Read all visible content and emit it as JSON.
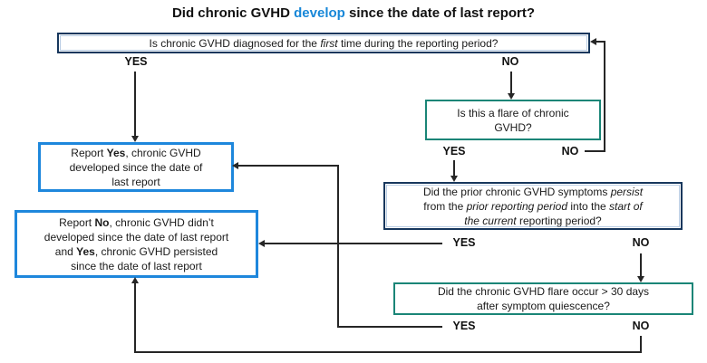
{
  "colors": {
    "navy": "#17375d",
    "teal": "#1a8577",
    "blue": "#1e87dc",
    "accent": "#1787d8",
    "line": "#262626"
  },
  "title": {
    "segments": [
      {
        "t": "Did chronic GVHD "
      },
      {
        "t": "develop",
        "s": "accent"
      },
      {
        "t": " since the date of last report?"
      }
    ]
  },
  "nodes": {
    "first_diagnosis": {
      "segments": [
        {
          "t": "Is chronic GVHD diagnosed for the "
        },
        {
          "t": "first",
          "s": "i"
        },
        {
          "t": " time during the reporting period?"
        }
      ]
    },
    "flare_question": {
      "segments": [
        {
          "t": "Is this a flare of chronic\nGVHD?"
        }
      ]
    },
    "persist_question": {
      "segments": [
        {
          "t": "Did the prior chronic GVHD symptoms "
        },
        {
          "t": "persist",
          "s": "i"
        },
        {
          "t": "\nfrom the "
        },
        {
          "t": "prior reporting period",
          "s": "i"
        },
        {
          "t": " into the "
        },
        {
          "t": "start of\nthe current",
          "s": "i"
        },
        {
          "t": " reporting period?"
        }
      ]
    },
    "flare_timing_question": {
      "segments": [
        {
          "t": "Did the chronic GVHD flare occur > 30 days\nafter symptom quiescence?"
        }
      ]
    },
    "report_yes": {
      "segments": [
        {
          "t": "Report "
        },
        {
          "t": "Yes",
          "s": "b"
        },
        {
          "t": ", chronic GVHD\ndeveloped since the date of\nlast report"
        }
      ]
    },
    "report_no": {
      "segments": [
        {
          "t": "Report "
        },
        {
          "t": "No",
          "s": "b"
        },
        {
          "t": ", chronic GVHD didn’t\ndeveloped since the date of last report\nand "
        },
        {
          "t": "Yes",
          "s": "b"
        },
        {
          "t": ", chronic GVHD persisted\nsince the date of last report"
        }
      ]
    }
  },
  "labels": {
    "yes": "YES",
    "no": "NO"
  }
}
